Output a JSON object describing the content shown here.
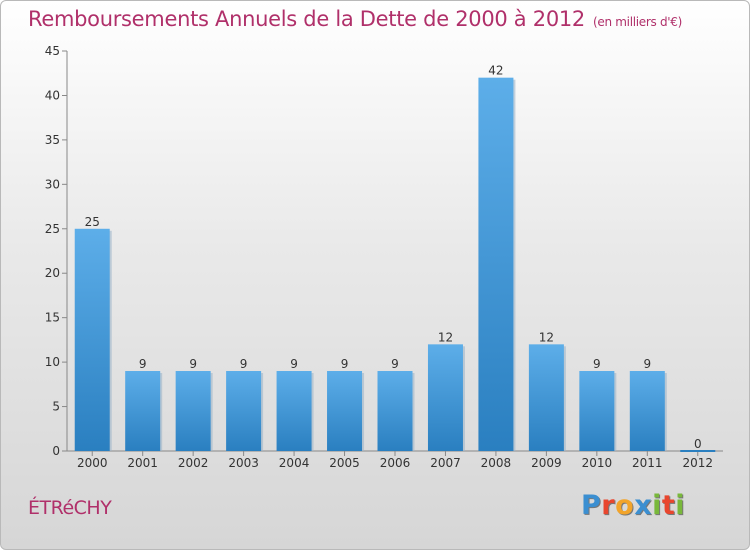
{
  "title": "Remboursements Annuels de la Dette de 2000 à 2012",
  "subtitle": "(en milliers d'€)",
  "commune": "ÉTRéCHY",
  "logo": {
    "letters": [
      "P",
      "r",
      "o",
      "x",
      "i",
      "t",
      "i"
    ],
    "colors": [
      "#3b8fd1",
      "#e8462e",
      "#f2a42a",
      "#3b8fd1",
      "#79b83b",
      "#e8462e",
      "#79b83b"
    ]
  },
  "colors": {
    "title": "#b0306a",
    "bar_light": "#5daee9",
    "bar_dark": "#2a7fc0"
  },
  "chart_data": {
    "type": "bar",
    "categories": [
      "2000",
      "2001",
      "2002",
      "2003",
      "2004",
      "2005",
      "2006",
      "2007",
      "2008",
      "2009",
      "2010",
      "2011",
      "2012"
    ],
    "values": [
      25,
      9,
      9,
      9,
      9,
      9,
      9,
      12,
      42,
      12,
      9,
      9,
      0
    ],
    "data_labels": [
      "25",
      "9",
      "9",
      "9",
      "9",
      "9",
      "9",
      "12",
      "42",
      "12",
      "9",
      "9",
      "0"
    ],
    "yticks": [
      0,
      5,
      10,
      15,
      20,
      25,
      30,
      35,
      40,
      45
    ],
    "ylim": [
      0,
      45
    ],
    "grid": false,
    "legend": "none"
  }
}
